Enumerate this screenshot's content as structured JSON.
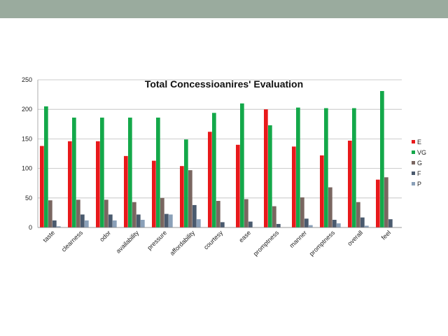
{
  "chart_data": {
    "type": "bar",
    "title": "Total Concessioanires' Evaluation",
    "xlabel": "",
    "ylabel": "",
    "ylim": [
      0,
      250
    ],
    "yticks": [
      0,
      50,
      100,
      150,
      200,
      250
    ],
    "grid": true,
    "legend_position": "right",
    "categories": [
      "taste",
      "clearness",
      "odor",
      "availability",
      "pressure",
      "affordability",
      "courtesy",
      "ease",
      "promptness",
      "manner",
      "promptness",
      "overall",
      "feel"
    ],
    "series": [
      {
        "name": "E",
        "color": "#e8191b",
        "values": [
          138,
          146,
          146,
          121,
          113,
          104,
          162,
          140,
          200,
          137,
          122,
          147,
          81
        ]
      },
      {
        "name": "VG",
        "color": "#14a84a",
        "values": [
          205,
          186,
          186,
          186,
          186,
          149,
          194,
          210,
          173,
          203,
          202,
          202,
          231
        ]
      },
      {
        "name": "G",
        "color": "#7a6660",
        "values": [
          46,
          47,
          47,
          43,
          50,
          97,
          45,
          48,
          36,
          51,
          68,
          43,
          85
        ]
      },
      {
        "name": "F",
        "color": "#4a5a6e",
        "values": [
          12,
          22,
          22,
          22,
          23,
          38,
          9,
          10,
          6,
          15,
          13,
          17,
          14
        ]
      },
      {
        "name": "P",
        "color": "#8aa0b8",
        "values": [
          2,
          12,
          12,
          13,
          22,
          14,
          0,
          0,
          0,
          4,
          7,
          3,
          0
        ]
      }
    ]
  }
}
